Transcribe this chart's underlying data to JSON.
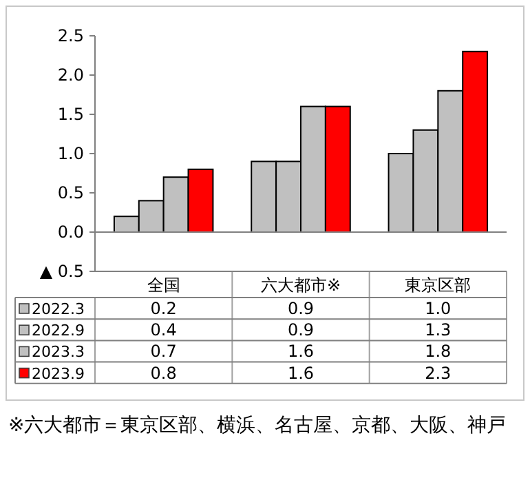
{
  "chart_data": {
    "type": "bar",
    "categories": [
      "全国",
      "六大都市※",
      "東京区部"
    ],
    "series": [
      {
        "name": "2022.3",
        "color": "#c0c0c0",
        "values": [
          0.2,
          0.9,
          1.0
        ],
        "value_labels": [
          "0.2",
          "0.9",
          "1.0"
        ]
      },
      {
        "name": "2022.9",
        "color": "#c0c0c0",
        "values": [
          0.4,
          0.9,
          1.3
        ],
        "value_labels": [
          "0.4",
          "0.9",
          "1.3"
        ]
      },
      {
        "name": "2023.3",
        "color": "#c0c0c0",
        "values": [
          0.7,
          1.6,
          1.8
        ],
        "value_labels": [
          "0.7",
          "1.6",
          "1.8"
        ]
      },
      {
        "name": "2023.9",
        "color": "#ff0000",
        "values": [
          0.8,
          1.6,
          2.3
        ],
        "value_labels": [
          "0.8",
          "1.6",
          "2.3"
        ]
      }
    ],
    "ylim": [
      -0.5,
      2.5
    ],
    "yticks": [
      {
        "value": -0.5,
        "label": "▲ 0.5"
      },
      {
        "value": 0,
        "label": "0.0"
      },
      {
        "value": 0.5,
        "label": "0.5"
      },
      {
        "value": 1,
        "label": "1.0"
      },
      {
        "value": 1.5,
        "label": "1.5"
      },
      {
        "value": 2,
        "label": "2.0"
      },
      {
        "value": 2.5,
        "label": "2.5"
      }
    ],
    "legend": "bottom",
    "annotations": [
      "※六大都市＝東京区部、横浜、名古屋、京都、大阪、神戸"
    ]
  }
}
